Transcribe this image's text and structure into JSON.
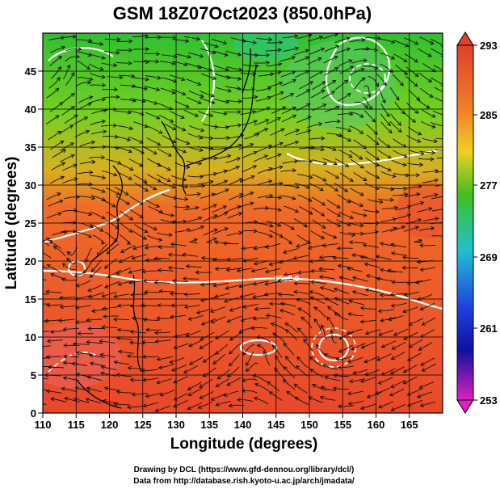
{
  "title": "GSM 18Z07Oct2023 (850.0hPa)",
  "x_axis": {
    "label": "Longitude (degrees)",
    "ticks": [
      "110",
      "115",
      "120",
      "125",
      "130",
      "135",
      "140",
      "145",
      "150",
      "155",
      "160",
      "165"
    ]
  },
  "y_axis": {
    "label": "Latitude  (degrees)",
    "ticks": [
      "0",
      "5",
      "10",
      "15",
      "20",
      "25",
      "30",
      "35",
      "40",
      "45"
    ]
  },
  "colorbar": {
    "labels": [
      "293",
      "285",
      "277",
      "269",
      "261",
      "253"
    ],
    "colors": {
      "top": "#e0402a",
      "orange": "#f08028",
      "yellow": "#f0d020",
      "green": "#40c020",
      "cyan": "#20c0d0",
      "blue": "#2040e0",
      "navy": "#1010a0",
      "magenta": "#e020c0"
    }
  },
  "contour_label": "1520.0",
  "credits": {
    "line1": "Drawing by DCL (https://www.gfd-dennou.org/library/dcl/)",
    "line2": "Data from http://database.rish.kyoto-u.ac.jp/arch/jmadata/"
  }
}
